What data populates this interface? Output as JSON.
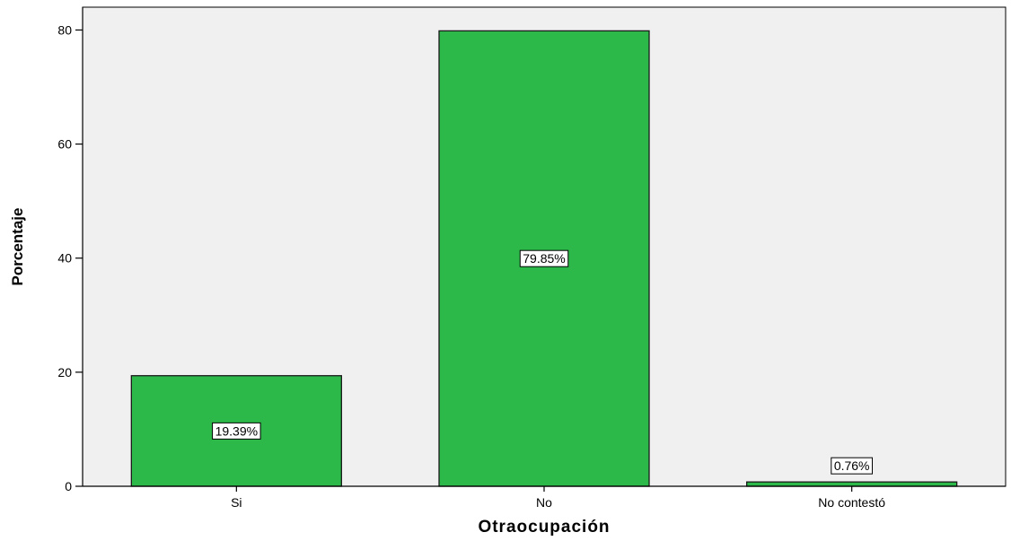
{
  "chart_data": {
    "type": "bar",
    "categories": [
      "Si",
      "No",
      "No contestó"
    ],
    "values": [
      19.39,
      79.85,
      0.76
    ],
    "data_labels": [
      "19.39%",
      "79.85%",
      "0.76%"
    ],
    "title": "",
    "xlabel": "Otraocupación",
    "ylabel": "Porcentaje",
    "ylim": [
      0,
      84
    ],
    "yticks": [
      0,
      20,
      40,
      60,
      80
    ],
    "ytick_labels": [
      "0",
      "20",
      "40",
      "60",
      "80"
    ],
    "grid": false,
    "legend": "none",
    "colors": {
      "bar_fill": "#2db84a",
      "bar_stroke": "#1a1a1a",
      "plot_background": "#f0f0f0",
      "page_background": "#ffffff",
      "label_box_fill": "#ffffff"
    }
  }
}
